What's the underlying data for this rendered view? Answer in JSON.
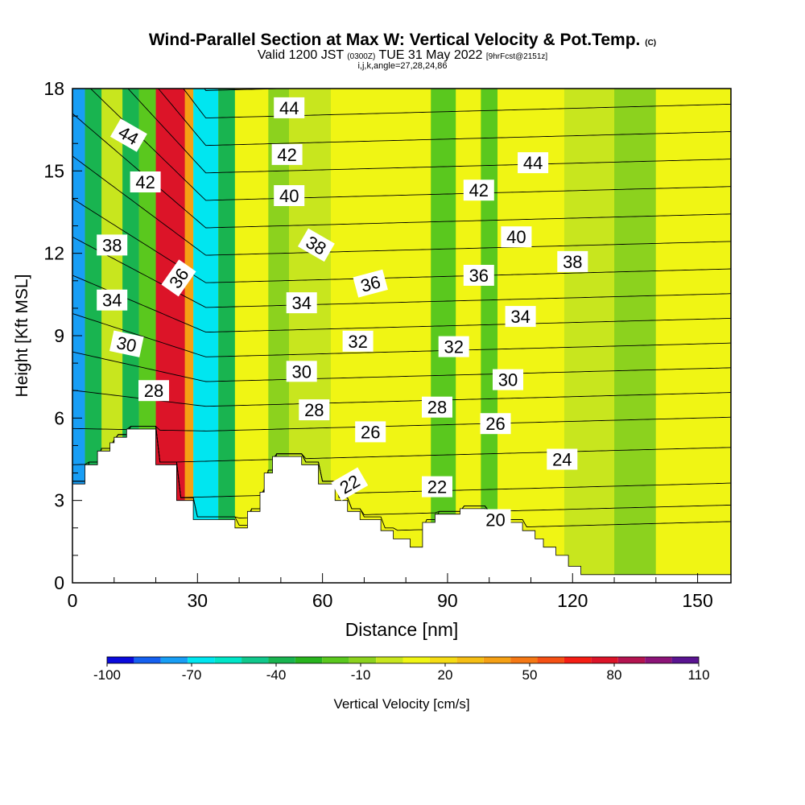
{
  "title": {
    "main": "Wind-Parallel Section at Max W: Vertical Velocity & Pot.Temp.",
    "copyright": "(C)",
    "valid": "Valid 1200 JST",
    "utc": "(0300Z)",
    "date": "TUE 31 May 2022",
    "fcst": "[9hrFcst@2151z]",
    "params": "i,j,k,angle=27,28,24,86"
  },
  "chart_data": {
    "type": "heatmap",
    "xlabel": "Distance [nm]",
    "ylabel": "Height [Kft MSL]",
    "xlim": [
      0,
      158
    ],
    "ylim": [
      0,
      18
    ],
    "x_ticks": [
      0,
      30,
      60,
      90,
      120,
      150
    ],
    "y_ticks": [
      0,
      3,
      6,
      9,
      12,
      15,
      18
    ],
    "colorbar": {
      "label": "Vertical Velocity [cm/s]",
      "tick_labels": [
        "-100",
        "-70",
        "-40",
        "-10",
        "20",
        "50",
        "80",
        "110"
      ],
      "levels": [
        -100,
        -90,
        -80,
        -70,
        -60,
        -50,
        -40,
        -30,
        -20,
        -10,
        0,
        10,
        20,
        30,
        40,
        50,
        60,
        70,
        80,
        90,
        100,
        110
      ],
      "colors": [
        "#0a0adc",
        "#1560f0",
        "#189ef5",
        "#00e6f0",
        "#00e6c8",
        "#10c88c",
        "#19b450",
        "#28b41e",
        "#5ac81e",
        "#8cd21e",
        "#c8e61e",
        "#f0f514",
        "#f5dc14",
        "#f5be14",
        "#f5a014",
        "#f57814",
        "#f55014",
        "#f51e14",
        "#dc1428",
        "#b41450",
        "#8c1478",
        "#5a1491"
      ]
    },
    "theta_contours": {
      "units": "K (last two digits)",
      "levels": [
        20,
        22,
        24,
        26,
        28,
        30,
        32,
        34,
        36,
        38,
        40,
        42,
        44
      ],
      "labels": [
        {
          "text": "44",
          "x": 13.5,
          "y": 16.3,
          "angle": 30
        },
        {
          "text": "42",
          "x": 17.5,
          "y": 14.6,
          "angle": 0
        },
        {
          "text": "38",
          "x": 9.5,
          "y": 12.3,
          "angle": 0
        },
        {
          "text": "36",
          "x": 25.5,
          "y": 11.1,
          "angle": -55
        },
        {
          "text": "34",
          "x": 9.5,
          "y": 10.3,
          "angle": 0
        },
        {
          "text": "30",
          "x": 13,
          "y": 8.7,
          "angle": 12
        },
        {
          "text": "28",
          "x": 19.5,
          "y": 7,
          "angle": 0
        },
        {
          "text": "44",
          "x": 52,
          "y": 17.3,
          "angle": 0
        },
        {
          "text": "42",
          "x": 51.5,
          "y": 15.6,
          "angle": 0
        },
        {
          "text": "40",
          "x": 52,
          "y": 14.1,
          "angle": 0
        },
        {
          "text": "38",
          "x": 58.5,
          "y": 12.3,
          "angle": 30
        },
        {
          "text": "34",
          "x": 55,
          "y": 10.2,
          "angle": 0
        },
        {
          "text": "36",
          "x": 71.5,
          "y": 10.9,
          "angle": -15
        },
        {
          "text": "32",
          "x": 68.5,
          "y": 8.8,
          "angle": 0
        },
        {
          "text": "30",
          "x": 55,
          "y": 7.7,
          "angle": 0
        },
        {
          "text": "28",
          "x": 58,
          "y": 6.3,
          "angle": 0
        },
        {
          "text": "26",
          "x": 71.5,
          "y": 5.5,
          "angle": 0
        },
        {
          "text": "22",
          "x": 66.5,
          "y": 3.6,
          "angle": -30
        },
        {
          "text": "32",
          "x": 91.5,
          "y": 8.6,
          "angle": 0
        },
        {
          "text": "28",
          "x": 87.5,
          "y": 6.4,
          "angle": 0
        },
        {
          "text": "26",
          "x": 101.5,
          "y": 5.8,
          "angle": 0
        },
        {
          "text": "22",
          "x": 87.5,
          "y": 3.5,
          "angle": 0
        },
        {
          "text": "20",
          "x": 101.5,
          "y": 2.3,
          "angle": 0
        },
        {
          "text": "24",
          "x": 117.5,
          "y": 4.5,
          "angle": 0
        },
        {
          "text": "30",
          "x": 104.5,
          "y": 7.4,
          "angle": 0
        },
        {
          "text": "34",
          "x": 107.5,
          "y": 9.7,
          "angle": 0
        },
        {
          "text": "36",
          "x": 97.5,
          "y": 11.2,
          "angle": 0
        },
        {
          "text": "38",
          "x": 120,
          "y": 11.7,
          "angle": 0
        },
        {
          "text": "40",
          "x": 106.5,
          "y": 12.6,
          "angle": 0
        },
        {
          "text": "42",
          "x": 97.5,
          "y": 14.3,
          "angle": 0
        },
        {
          "text": "44",
          "x": 110.5,
          "y": 15.3,
          "angle": 0
        }
      ]
    },
    "terrain": [
      [
        0,
        3.6
      ],
      [
        3,
        3.6
      ],
      [
        3,
        4.3
      ],
      [
        6,
        4.3
      ],
      [
        6,
        4.8
      ],
      [
        9,
        4.8
      ],
      [
        9,
        5.1
      ],
      [
        10,
        5.1
      ],
      [
        10,
        5.3
      ],
      [
        13,
        5.3
      ],
      [
        13,
        5.6
      ],
      [
        20,
        5.6
      ],
      [
        20,
        4.3
      ],
      [
        25,
        4.3
      ],
      [
        25,
        3
      ],
      [
        29,
        3
      ],
      [
        29,
        2.3
      ],
      [
        39,
        2.3
      ],
      [
        39,
        2
      ],
      [
        42,
        2
      ],
      [
        42,
        2.6
      ],
      [
        45,
        2.6
      ],
      [
        45,
        3.3
      ],
      [
        46,
        3.3
      ],
      [
        46,
        4
      ],
      [
        48,
        4
      ],
      [
        48,
        4.6
      ],
      [
        55,
        4.6
      ],
      [
        55,
        4.3
      ],
      [
        59,
        4.3
      ],
      [
        59,
        3.6
      ],
      [
        63,
        3.6
      ],
      [
        63,
        3
      ],
      [
        66,
        3
      ],
      [
        66,
        2.6
      ],
      [
        69,
        2.6
      ],
      [
        69,
        2.3
      ],
      [
        74,
        2.3
      ],
      [
        74,
        1.9
      ],
      [
        77,
        1.9
      ],
      [
        77,
        1.6
      ],
      [
        81,
        1.6
      ],
      [
        81,
        1.3
      ],
      [
        84,
        1.3
      ],
      [
        84,
        2.2
      ],
      [
        87,
        2.2
      ],
      [
        87,
        2.5
      ],
      [
        93,
        2.5
      ],
      [
        93,
        2.7
      ],
      [
        99,
        2.7
      ],
      [
        99,
        2.4
      ],
      [
        104,
        2.4
      ],
      [
        104,
        2.2
      ],
      [
        108,
        2.2
      ],
      [
        108,
        1.9
      ],
      [
        111,
        1.9
      ],
      [
        111,
        1.6
      ],
      [
        113,
        1.6
      ],
      [
        113,
        1.3
      ],
      [
        116,
        1.3
      ],
      [
        116,
        1
      ],
      [
        119,
        1
      ],
      [
        119,
        0.6
      ],
      [
        122,
        0.6
      ],
      [
        122,
        0.3
      ],
      [
        158,
        0.3
      ]
    ],
    "velocity_field": [
      {
        "x": [
          0,
          3
        ],
        "w": -75
      },
      {
        "x": [
          3,
          7
        ],
        "w": -40
      },
      {
        "x": [
          7,
          12
        ],
        "w": 0
      },
      {
        "x": [
          12,
          16
        ],
        "w": -40
      },
      {
        "x": [
          16,
          20
        ],
        "w": -20
      },
      {
        "x": [
          20,
          27
        ],
        "w": 85
      },
      {
        "x": [
          27,
          29
        ],
        "w": 40
      },
      {
        "x": [
          29,
          35
        ],
        "w": -70
      },
      {
        "x": [
          35,
          39
        ],
        "w": -40
      },
      {
        "x": [
          39,
          47
        ],
        "w": 15
      },
      {
        "x": [
          47,
          52
        ],
        "w": -10
      },
      {
        "x": [
          52,
          62
        ],
        "w": 5
      },
      {
        "x": [
          62,
          77
        ],
        "w": 15
      },
      {
        "x": [
          77,
          86
        ],
        "w": 10
      },
      {
        "x": [
          86,
          92
        ],
        "w": -20
      },
      {
        "x": [
          92,
          98
        ],
        "w": 10
      },
      {
        "x": [
          98,
          102
        ],
        "w": -20
      },
      {
        "x": [
          102,
          118
        ],
        "w": 15
      },
      {
        "x": [
          118,
          130
        ],
        "w": 5
      },
      {
        "x": [
          130,
          140
        ],
        "w": -5
      },
      {
        "x": [
          140,
          158
        ],
        "w": 10
      }
    ]
  }
}
